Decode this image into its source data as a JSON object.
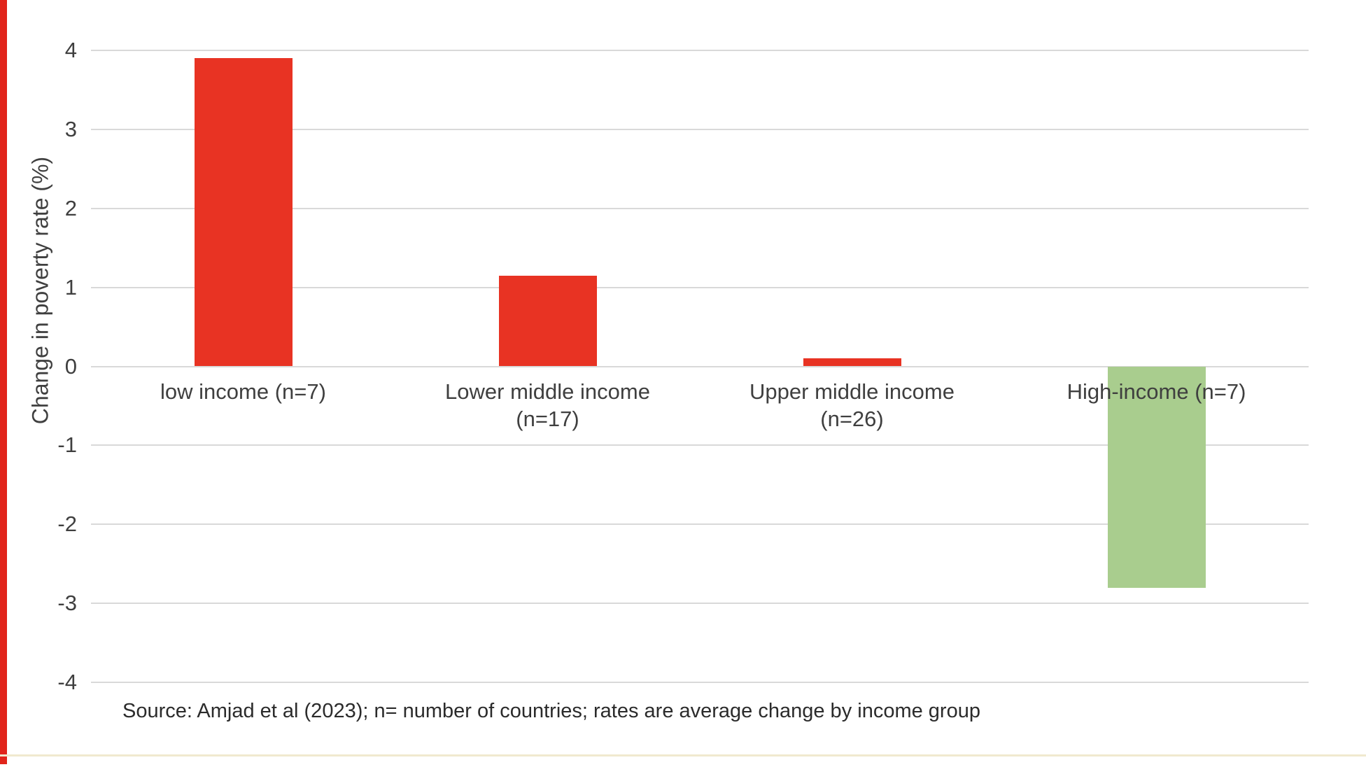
{
  "page": {
    "source_note": "Source: Amjad et al (2023); n= number of countries; rates are average change by income group"
  },
  "chart_data": {
    "type": "bar",
    "title": "",
    "xlabel": "",
    "ylabel": "Change in poverty rate (%)",
    "ylim": [
      -4,
      4
    ],
    "yticks": [
      4,
      3,
      2,
      1,
      0,
      -1,
      -2,
      -3,
      -4
    ],
    "grid": "horizontal",
    "legend": "none",
    "categories": [
      "low income (n=7)",
      "Lower middle income\n(n=17)",
      "Upper middle income\n(n=26)",
      "High-income (n=7)"
    ],
    "category_slugs": [
      "low-income",
      "lower-middle-income",
      "upper-middle-income",
      "high-income"
    ],
    "values": [
      3.9,
      1.15,
      0.1,
      -2.8
    ],
    "bar_colors": [
      "#e83323",
      "#e83323",
      "#e83323",
      "#a9cd8e"
    ],
    "palette": {
      "increase_bar": "#e83323",
      "decrease_bar": "#a9cd8e",
      "gridline": "#d9d9d9",
      "left_stripe": "#e1251b",
      "bottom_rule": "#f0e9cf"
    }
  }
}
